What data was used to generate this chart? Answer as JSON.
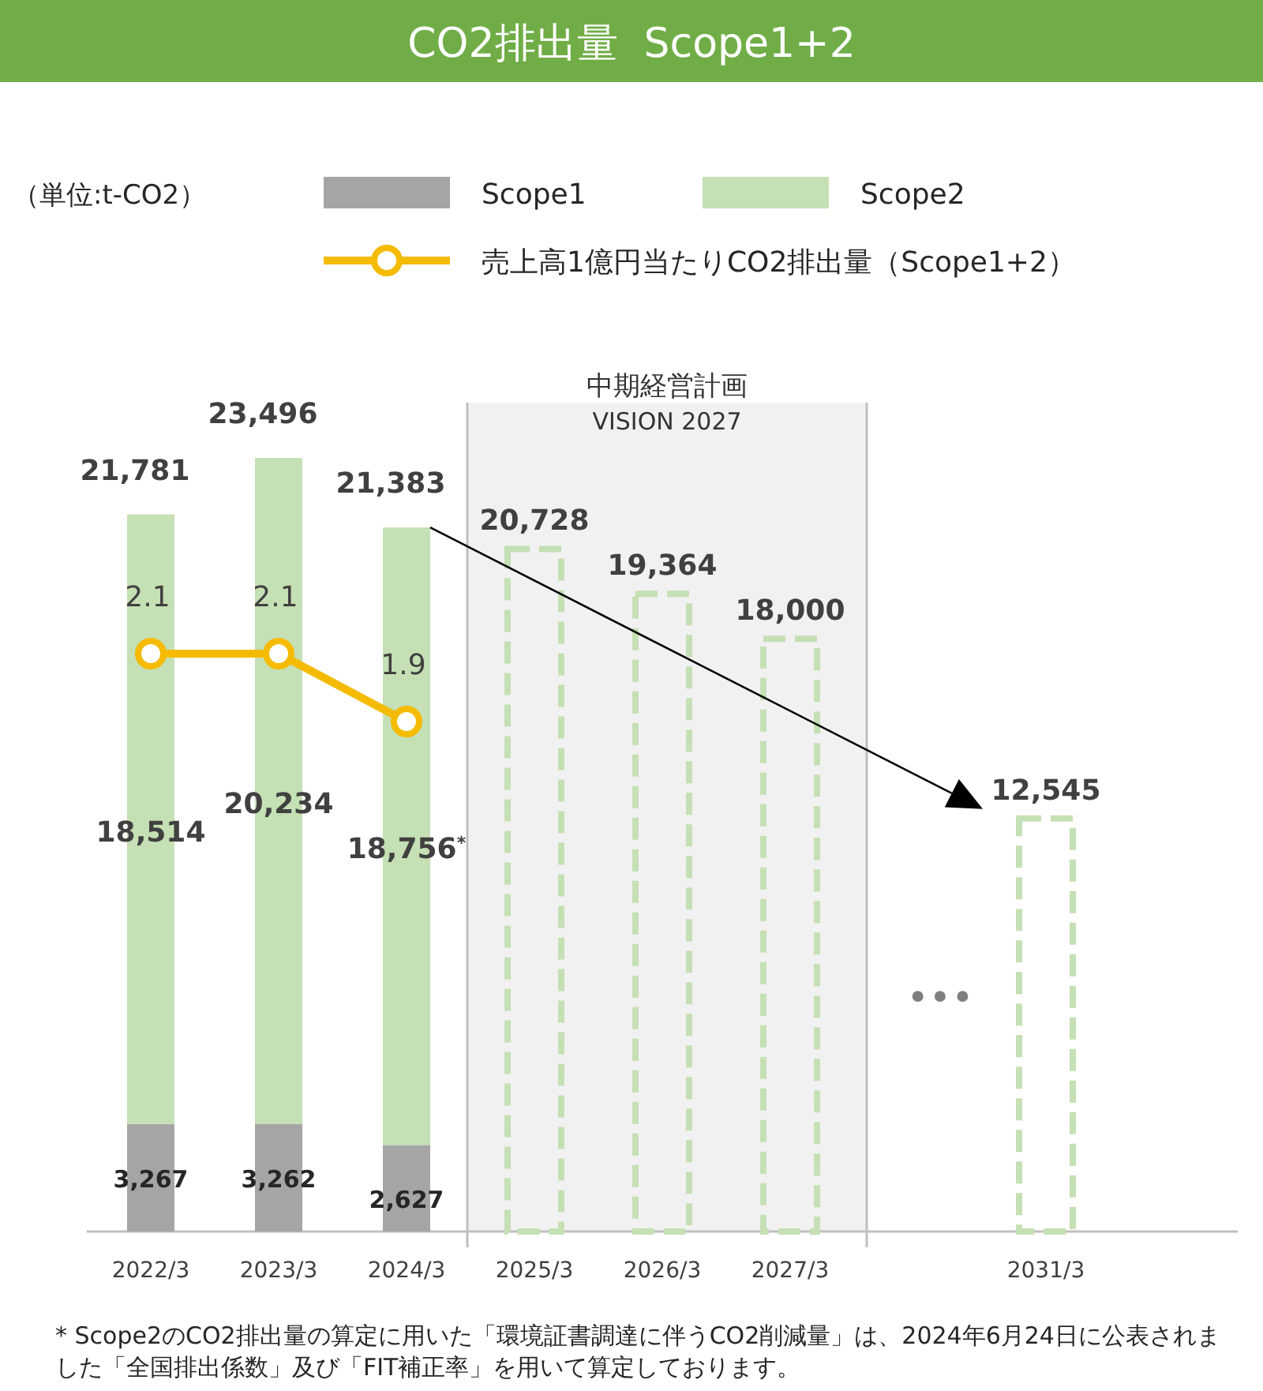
{
  "chart_data": {
    "type": "bar",
    "title": "CO2排出量  Scope1+2",
    "categories": [
      "2022/3",
      "2023/3",
      "2024/3",
      "2025/3",
      "2026/3",
      "2027/3",
      null,
      "2031/3",
      null
    ],
    "stacked": true,
    "tick_labels": "x",
    "data_labels": true,
    "legend": "top",
    "totals": [
      "21,781",
      "23,496",
      "21,383",
      null,
      null,
      null,
      null,
      null,
      null
    ],
    "series": [
      {
        "name": "Scope1",
        "color": "#a5a5a5",
        "values": [
          3267,
          3262,
          2627,
          null,
          null,
          null,
          null,
          null,
          null
        ],
        "value_labels": [
          "3,267",
          "3,262",
          "2,627",
          null,
          null,
          null,
          null,
          null,
          null
        ]
      },
      {
        "name": "Scope2",
        "color": "#c5e0b4",
        "values": [
          18514,
          20234,
          18756,
          null,
          null,
          null,
          null,
          null,
          null
        ],
        "value_labels": [
          "18,514",
          "20,234",
          "18,756$^{*}$",
          null,
          null,
          null,
          null,
          null,
          null
        ]
      },
      {
        "type": "bar",
        "line_style": "dashed",
        "color": "#c5e0b4",
        "values": [
          null,
          null,
          null,
          20728,
          19364,
          18000,
          null,
          12545,
          null
        ],
        "value_labels": [
          null,
          null,
          null,
          "20,728",
          "19,364",
          "18,000",
          null,
          "12,545",
          null
        ]
      },
      {
        "name": "売上高1億円当たりCO2排出量（Scope1+2）",
        "type": "line",
        "axis": "y2",
        "color": "#f5bb00",
        "marker": "circle",
        "values": [
          2.1,
          2.1,
          1.9,
          null,
          null,
          null,
          null,
          null,
          null
        ],
        "value_labels": [
          "2.1",
          "2.1",
          "1.9",
          null,
          null,
          null,
          null,
          null,
          null
        ]
      }
    ],
    "bands": [
      {
        "axis": "x",
        "from": "2025/3",
        "to": "2027/3",
        "label": "中期経営計画\nVISION 2027",
        "color": "#bfbfbf"
      }
    ],
    "annotations": [
      "（単位:t-CO2）",
      {
        "text": "•••"
      },
      "* Scope2のCO2排出量の算定に用いた「環境証書調達に伴うCO2削減量」は、2024年6月24日に公表されました「全国排出係数」及び「FIT補正率」を用いて算定しております。"
    ]
  }
}
